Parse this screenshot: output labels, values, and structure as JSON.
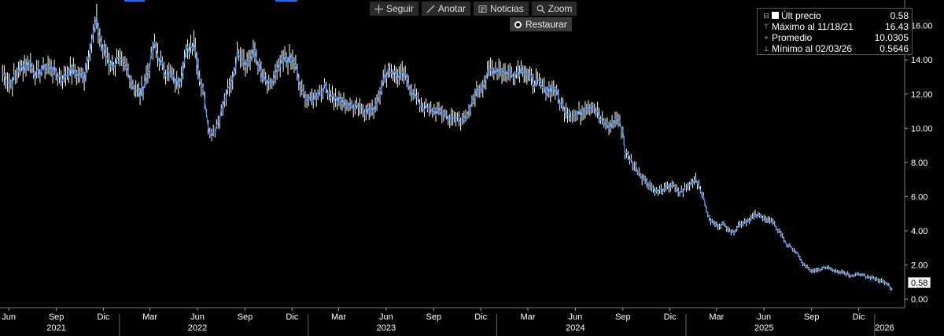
{
  "toolbar": {
    "follow_label": "Seguir",
    "annotate_label": "Anotar",
    "news_label": "Noticias",
    "zoom_label": "Zoom",
    "restore_label": "Restaurar"
  },
  "legend": {
    "last_label": "Últ precio",
    "last_value": "0.58",
    "max_label": "Máximo al 11/18/21",
    "max_value": "16.43",
    "avg_label": "Promedio",
    "avg_value": "10.0305",
    "min_label": "Mínimo al 02/03/26",
    "min_value": "0.5646"
  },
  "last_flag": "0.58",
  "colors": {
    "background": "#000000",
    "price_line": "#3f8cff",
    "price_bar": "#ffffff",
    "grid": "#3a3a3a",
    "axis_text": "#ffffff"
  },
  "chart_data": {
    "type": "line",
    "title": "",
    "xlabel": "",
    "ylabel": "",
    "ylim": [
      -0.5,
      17.5
    ],
    "yticks": [
      "0.00",
      "2.00",
      "4.00",
      "6.00",
      "8.00",
      "10.00",
      "12.00",
      "14.00",
      "16.00"
    ],
    "ytick_values": [
      0,
      2,
      4,
      6,
      8,
      10,
      12,
      14,
      16
    ],
    "month_ticks": [
      "Jun",
      "Sep",
      "Dic",
      "Mar",
      "Jun",
      "Sep",
      "Dic",
      "Mar",
      "Jun",
      "Sep",
      "Dic",
      "Mar",
      "Jun",
      "Sep",
      "Dic",
      "Mar",
      "Jun",
      "Sep",
      "Dic"
    ],
    "month_tick_dates": [
      "2021-06-01",
      "2021-09-01",
      "2021-12-01",
      "2022-03-01",
      "2022-06-01",
      "2022-09-01",
      "2022-12-01",
      "2023-03-01",
      "2023-06-01",
      "2023-09-01",
      "2023-12-01",
      "2024-03-01",
      "2024-06-01",
      "2024-09-01",
      "2024-12-01",
      "2025-03-01",
      "2025-06-01",
      "2025-09-01",
      "2025-12-01"
    ],
    "year_labels": [
      "2021",
      "2022",
      "2023",
      "2024",
      "2025",
      "2026"
    ],
    "year_label_dates": [
      "2021-09-01",
      "2022-06-01",
      "2023-06-01",
      "2024-06-01",
      "2025-06-01",
      "2026-01-20"
    ],
    "year_dividers": [
      "2022-01-01",
      "2023-01-01",
      "2024-01-01",
      "2025-01-01",
      "2026-01-01"
    ],
    "xlim": [
      "2021-05-15",
      "2026-02-28"
    ],
    "grid": false,
    "legend_position": "top-right",
    "series": [
      {
        "name": "Últ precio",
        "points": [
          [
            "2021-05-20",
            13.2
          ],
          [
            "2021-06-05",
            12.6
          ],
          [
            "2021-06-20",
            13.4
          ],
          [
            "2021-07-10",
            13.9
          ],
          [
            "2021-07-25",
            13.1
          ],
          [
            "2021-08-10",
            13.6
          ],
          [
            "2021-08-25",
            13.5
          ],
          [
            "2021-09-10",
            12.9
          ],
          [
            "2021-09-25",
            13.3
          ],
          [
            "2021-10-10",
            13.2
          ],
          [
            "2021-10-25",
            13.0
          ],
          [
            "2021-11-05",
            14.8
          ],
          [
            "2021-11-18",
            16.2
          ],
          [
            "2021-11-30",
            14.6
          ],
          [
            "2021-12-15",
            13.8
          ],
          [
            "2021-12-30",
            13.9
          ],
          [
            "2022-01-15",
            13.5
          ],
          [
            "2022-01-30",
            12.4
          ],
          [
            "2022-02-10",
            11.9
          ],
          [
            "2022-02-25",
            13.3
          ],
          [
            "2022-03-10",
            14.8
          ],
          [
            "2022-03-25",
            13.6
          ],
          [
            "2022-04-10",
            13.1
          ],
          [
            "2022-04-25",
            12.6
          ],
          [
            "2022-05-10",
            14.3
          ],
          [
            "2022-05-25",
            15.2
          ],
          [
            "2022-06-05",
            13.0
          ],
          [
            "2022-06-15",
            11.8
          ],
          [
            "2022-06-25",
            9.6
          ],
          [
            "2022-07-05",
            9.9
          ],
          [
            "2022-07-20",
            11.3
          ],
          [
            "2022-08-05",
            12.6
          ],
          [
            "2022-08-20",
            14.6
          ],
          [
            "2022-09-05",
            13.8
          ],
          [
            "2022-09-20",
            14.5
          ],
          [
            "2022-10-05",
            12.9
          ],
          [
            "2022-10-20",
            12.4
          ],
          [
            "2022-11-05",
            13.5
          ],
          [
            "2022-11-20",
            14.1
          ],
          [
            "2022-12-05",
            13.9
          ],
          [
            "2022-12-20",
            12.1
          ],
          [
            "2023-01-05",
            11.6
          ],
          [
            "2023-01-20",
            12.1
          ],
          [
            "2023-02-05",
            12.4
          ],
          [
            "2023-02-20",
            11.7
          ],
          [
            "2023-03-05",
            11.6
          ],
          [
            "2023-03-20",
            11.3
          ],
          [
            "2023-04-05",
            11.4
          ],
          [
            "2023-04-20",
            11.1
          ],
          [
            "2023-05-05",
            11.0
          ],
          [
            "2023-05-20",
            12.2
          ],
          [
            "2023-06-05",
            13.5
          ],
          [
            "2023-06-20",
            13.1
          ],
          [
            "2023-07-05",
            13.0
          ],
          [
            "2023-07-20",
            12.3
          ],
          [
            "2023-08-05",
            11.4
          ],
          [
            "2023-08-20",
            11.1
          ],
          [
            "2023-09-05",
            11.0
          ],
          [
            "2023-09-20",
            10.9
          ],
          [
            "2023-10-05",
            10.5
          ],
          [
            "2023-10-20",
            10.6
          ],
          [
            "2023-11-05",
            10.6
          ],
          [
            "2023-11-20",
            12.0
          ],
          [
            "2023-12-05",
            12.6
          ],
          [
            "2023-12-20",
            13.4
          ],
          [
            "2024-01-05",
            13.5
          ],
          [
            "2024-01-20",
            13.3
          ],
          [
            "2024-02-05",
            13.2
          ],
          [
            "2024-02-20",
            13.6
          ],
          [
            "2024-03-05",
            12.9
          ],
          [
            "2024-03-20",
            12.6
          ],
          [
            "2024-04-05",
            12.2
          ],
          [
            "2024-04-20",
            12.4
          ],
          [
            "2024-05-05",
            11.4
          ],
          [
            "2024-05-20",
            10.9
          ],
          [
            "2024-06-05",
            10.7
          ],
          [
            "2024-06-20",
            11.3
          ],
          [
            "2024-07-05",
            11.4
          ],
          [
            "2024-07-20",
            10.5
          ],
          [
            "2024-08-05",
            10.0
          ],
          [
            "2024-08-20",
            10.6
          ],
          [
            "2024-09-01",
            9.9
          ],
          [
            "2024-09-05",
            8.6
          ],
          [
            "2024-09-20",
            8.0
          ],
          [
            "2024-10-05",
            7.3
          ],
          [
            "2024-10-20",
            6.8
          ],
          [
            "2024-11-05",
            6.3
          ],
          [
            "2024-11-20",
            6.4
          ],
          [
            "2024-12-05",
            6.7
          ],
          [
            "2024-12-20",
            6.2
          ],
          [
            "2025-01-05",
            6.6
          ],
          [
            "2025-01-20",
            7.1
          ],
          [
            "2025-02-01",
            6.2
          ],
          [
            "2025-02-15",
            4.7
          ],
          [
            "2025-03-01",
            4.3
          ],
          [
            "2025-03-15",
            4.4
          ],
          [
            "2025-04-01",
            3.9
          ],
          [
            "2025-04-15",
            4.4
          ],
          [
            "2025-05-01",
            4.6
          ],
          [
            "2025-05-15",
            4.9
          ],
          [
            "2025-06-01",
            4.8
          ],
          [
            "2025-06-15",
            4.5
          ],
          [
            "2025-07-01",
            4.0
          ],
          [
            "2025-07-15",
            3.2
          ],
          [
            "2025-08-01",
            2.8
          ],
          [
            "2025-08-15",
            2.1
          ],
          [
            "2025-09-01",
            1.6
          ],
          [
            "2025-09-15",
            1.7
          ],
          [
            "2025-10-01",
            1.9
          ],
          [
            "2025-10-15",
            1.7
          ],
          [
            "2025-11-01",
            1.6
          ],
          [
            "2025-11-15",
            1.4
          ],
          [
            "2025-12-01",
            1.5
          ],
          [
            "2025-12-15",
            1.3
          ],
          [
            "2026-01-05",
            1.2
          ],
          [
            "2026-01-20",
            1.0
          ],
          [
            "2026-02-03",
            0.58
          ]
        ]
      }
    ]
  }
}
